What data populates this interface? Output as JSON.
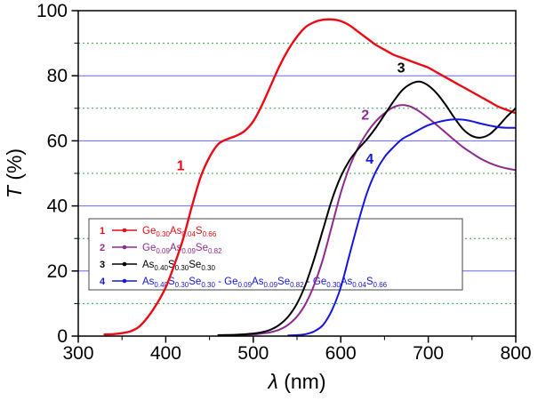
{
  "chart_data": {
    "type": "line",
    "title": "",
    "xlabel": "λ (nm)",
    "ylabel": "T (%)",
    "xlim": [
      300,
      800
    ],
    "ylim": [
      0,
      100
    ],
    "x_ticks": [
      300,
      400,
      500,
      600,
      700,
      800
    ],
    "y_ticks": [
      0,
      20,
      40,
      60,
      80,
      100
    ],
    "x_minor_step": 50,
    "y_minor_step": 10,
    "grid": {
      "major_color": "#6666ff",
      "minor_color": "#2fa24a",
      "major_style": "solid",
      "minor_style": "dotted"
    },
    "series": [
      {
        "id": "1",
        "name": "Ge0.30As0.04S0.66",
        "color": "#ea0b16",
        "points": [
          [
            330,
            0.5
          ],
          [
            340,
            0.6
          ],
          [
            350,
            0.9
          ],
          [
            360,
            1.5
          ],
          [
            370,
            3
          ],
          [
            380,
            6
          ],
          [
            390,
            10
          ],
          [
            400,
            15
          ],
          [
            410,
            22
          ],
          [
            420,
            30
          ],
          [
            430,
            40
          ],
          [
            440,
            49
          ],
          [
            450,
            55
          ],
          [
            460,
            59
          ],
          [
            470,
            60.5
          ],
          [
            480,
            61.5
          ],
          [
            490,
            63
          ],
          [
            500,
            66
          ],
          [
            510,
            71
          ],
          [
            520,
            77
          ],
          [
            530,
            83
          ],
          [
            540,
            88
          ],
          [
            550,
            92
          ],
          [
            560,
            95
          ],
          [
            570,
            96.5
          ],
          [
            580,
            97.2
          ],
          [
            590,
            97.3
          ],
          [
            600,
            96.8
          ],
          [
            610,
            95.5
          ],
          [
            620,
            93.5
          ],
          [
            630,
            91.5
          ],
          [
            640,
            89.5
          ],
          [
            650,
            88
          ],
          [
            660,
            86.5
          ],
          [
            670,
            85.5
          ],
          [
            680,
            84.5
          ],
          [
            690,
            83.5
          ],
          [
            700,
            82.5
          ],
          [
            710,
            81
          ],
          [
            720,
            79.5
          ],
          [
            730,
            78
          ],
          [
            740,
            76.5
          ],
          [
            750,
            75
          ],
          [
            760,
            73.5
          ],
          [
            770,
            72
          ],
          [
            780,
            70.5
          ],
          [
            790,
            69.5
          ],
          [
            800,
            68.5
          ]
        ]
      },
      {
        "id": "2",
        "name": "Ge0.09As0.09Se0.82",
        "color": "#8e2a8e",
        "points": [
          [
            460,
            0.2
          ],
          [
            480,
            0.3
          ],
          [
            500,
            0.5
          ],
          [
            510,
            0.8
          ],
          [
            520,
            1.2
          ],
          [
            530,
            2
          ],
          [
            540,
            3.5
          ],
          [
            550,
            6
          ],
          [
            560,
            10
          ],
          [
            570,
            16
          ],
          [
            580,
            24
          ],
          [
            590,
            34
          ],
          [
            600,
            44
          ],
          [
            610,
            52
          ],
          [
            620,
            58
          ],
          [
            630,
            62.5
          ],
          [
            640,
            66
          ],
          [
            650,
            68.5
          ],
          [
            660,
            70.3
          ],
          [
            670,
            71
          ],
          [
            680,
            70.5
          ],
          [
            690,
            69
          ],
          [
            700,
            67
          ],
          [
            710,
            64.8
          ],
          [
            720,
            62.5
          ],
          [
            730,
            60.2
          ],
          [
            740,
            58
          ],
          [
            750,
            56.2
          ],
          [
            760,
            54.5
          ],
          [
            770,
            53.2
          ],
          [
            780,
            52.2
          ],
          [
            790,
            51.5
          ],
          [
            800,
            51
          ]
        ]
      },
      {
        "id": "3",
        "name": "As0.40S0.30Se0.30",
        "color": "#000000",
        "points": [
          [
            460,
            0.3
          ],
          [
            480,
            0.4
          ],
          [
            500,
            0.8
          ],
          [
            510,
            1.2
          ],
          [
            520,
            2
          ],
          [
            530,
            3.5
          ],
          [
            540,
            6
          ],
          [
            550,
            10
          ],
          [
            560,
            16
          ],
          [
            570,
            24
          ],
          [
            580,
            33
          ],
          [
            590,
            42
          ],
          [
            600,
            49
          ],
          [
            610,
            54
          ],
          [
            620,
            57.5
          ],
          [
            630,
            60.5
          ],
          [
            640,
            64
          ],
          [
            650,
            68
          ],
          [
            660,
            72
          ],
          [
            670,
            75.5
          ],
          [
            680,
            77.5
          ],
          [
            690,
            78.2
          ],
          [
            700,
            77
          ],
          [
            710,
            74.5
          ],
          [
            720,
            71
          ],
          [
            730,
            67
          ],
          [
            740,
            63.5
          ],
          [
            750,
            61.5
          ],
          [
            760,
            61
          ],
          [
            770,
            62
          ],
          [
            780,
            64.5
          ],
          [
            790,
            67.5
          ],
          [
            800,
            70
          ]
        ]
      },
      {
        "id": "4",
        "name": "As0.40S0.30Se0.30 - Ge0.09As0.09Se0.82 - Ge0.30As0.04S0.66",
        "color": "#1515dd",
        "points": [
          [
            540,
            0.2
          ],
          [
            550,
            0.3
          ],
          [
            560,
            0.6
          ],
          [
            570,
            1.5
          ],
          [
            580,
            3.5
          ],
          [
            590,
            8
          ],
          [
            600,
            15
          ],
          [
            610,
            25
          ],
          [
            620,
            35
          ],
          [
            630,
            44
          ],
          [
            640,
            50.5
          ],
          [
            650,
            55
          ],
          [
            660,
            58
          ],
          [
            670,
            60.5
          ],
          [
            680,
            62
          ],
          [
            690,
            63.5
          ],
          [
            700,
            64.8
          ],
          [
            710,
            65.7
          ],
          [
            720,
            66.3
          ],
          [
            730,
            66.6
          ],
          [
            740,
            66.5
          ],
          [
            750,
            66
          ],
          [
            760,
            65.3
          ],
          [
            770,
            64.7
          ],
          [
            780,
            64.2
          ],
          [
            790,
            64
          ],
          [
            800,
            64
          ]
        ]
      }
    ],
    "annotations": [
      {
        "label": "1",
        "x": 417,
        "y": 51,
        "color": "#ea0b16"
      },
      {
        "label": "2",
        "x": 628,
        "y": 66.5,
        "color": "#8e2a8e"
      },
      {
        "label": "3",
        "x": 669,
        "y": 81,
        "color": "#000000"
      },
      {
        "label": "4",
        "x": 633,
        "y": 53,
        "color": "#1515dd"
      }
    ],
    "legend": {
      "position": "inside-bottom-left",
      "entries": [
        {
          "number": "1",
          "formula": "Ge_{0.30}As_{0.04}S_{0.66}",
          "color": "#ea0b16"
        },
        {
          "number": "2",
          "formula": "Ge_{0.09}As_{0.09}Se_{0.82}",
          "color": "#8e2a8e"
        },
        {
          "number": "3",
          "formula": "As_{0.40}S_{0.30}Se_{0.30}",
          "color": "#000000"
        },
        {
          "number": "4",
          "formula": "As_{0.40}S_{0.30}Se_{0.30} - Ge_{0.09}As_{0.09}Se_{0.82} - Ge_{0.30}As_{0.04}S_{0.66}",
          "color": "#1515dd"
        }
      ]
    },
    "axis_color": "#000000"
  }
}
